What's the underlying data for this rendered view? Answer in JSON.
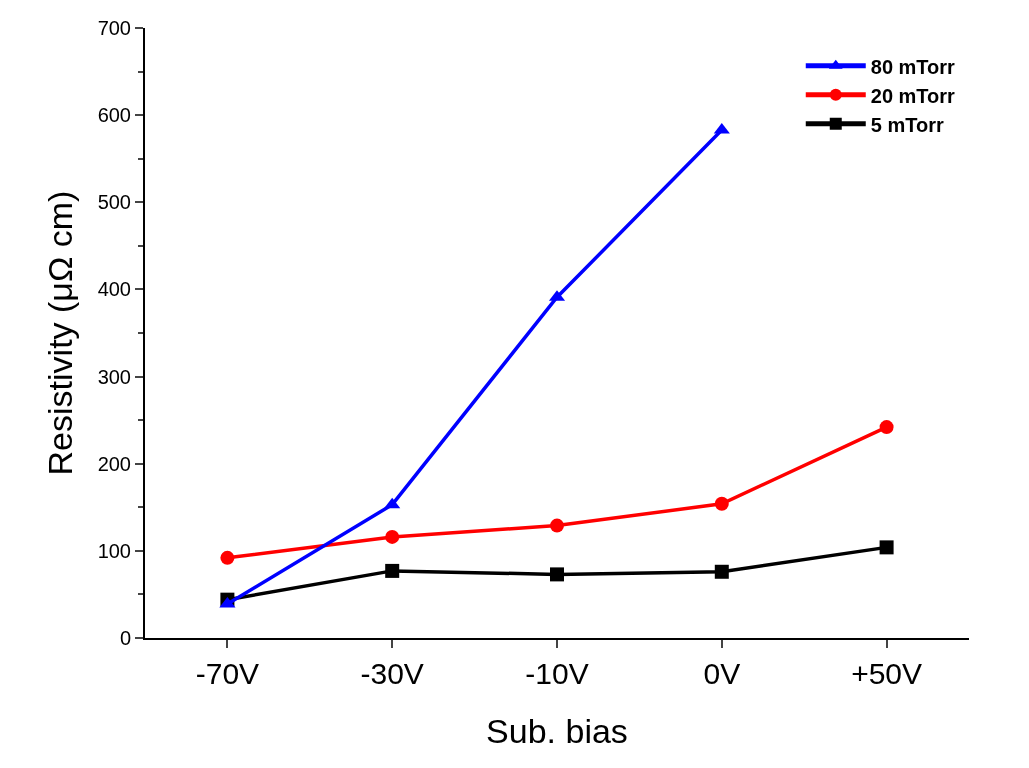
{
  "chart_data": {
    "type": "line",
    "xlabel": "Sub. bias",
    "ylabel": "Resistivity (μΩ cm)",
    "categories": [
      "-70V",
      "-30V",
      "-10V",
      "0V",
      "+50V"
    ],
    "series": [
      {
        "name": "80 mTorr",
        "color": "#0000ff",
        "marker": "triangle",
        "values": [
          39,
          153,
          391,
          583,
          null
        ]
      },
      {
        "name": "20 mTorr",
        "color": "#ff0000",
        "marker": "circle",
        "values": [
          92,
          116,
          129,
          154,
          242
        ]
      },
      {
        "name": "5 mTorr",
        "color": "#000000",
        "marker": "square",
        "values": [
          44,
          77,
          73,
          76,
          104
        ]
      }
    ],
    "ylim": [
      0,
      700
    ],
    "yticks": [
      0,
      100,
      200,
      300,
      400,
      500,
      600,
      700
    ],
    "legend": "top right",
    "line_style": "solid"
  }
}
